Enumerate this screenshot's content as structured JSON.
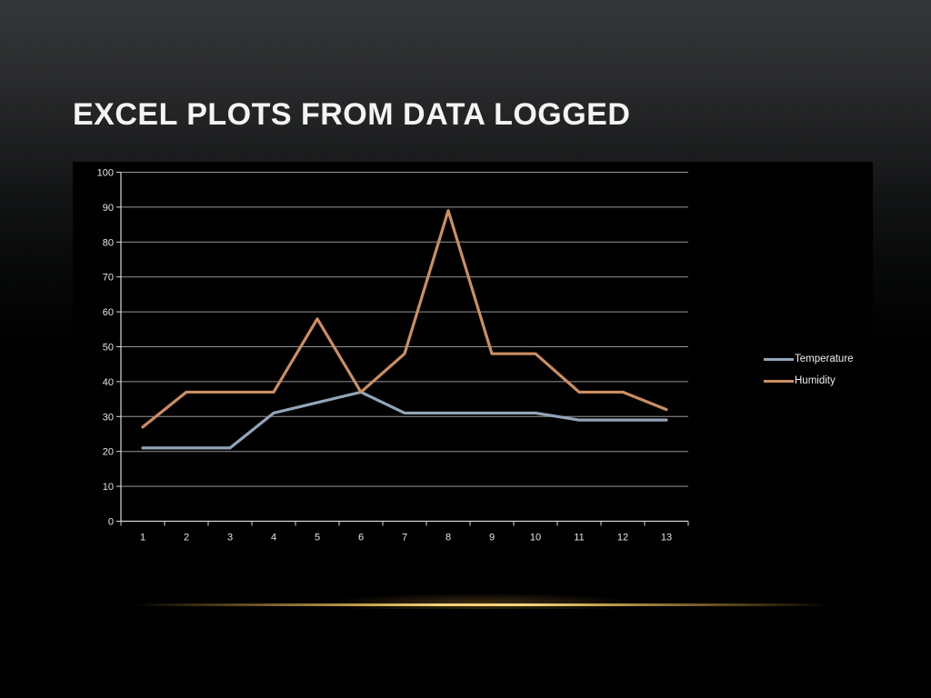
{
  "slide": {
    "title": "EXCEL PLOTS FROM DATA LOGGED"
  },
  "chart_data": {
    "type": "line",
    "title": "",
    "xlabel": "",
    "ylabel": "",
    "categories": [
      "1",
      "2",
      "3",
      "4",
      "5",
      "6",
      "7",
      "8",
      "9",
      "10",
      "11",
      "12",
      "13"
    ],
    "series": [
      {
        "name": "Temperature",
        "color": "#93a5b8",
        "values": [
          21,
          21,
          21,
          31,
          34,
          37,
          31,
          31,
          31,
          31,
          29,
          29,
          29
        ]
      },
      {
        "name": "Humidity",
        "color": "#cb8e63",
        "values": [
          27,
          37,
          37,
          37,
          58,
          37,
          48,
          89,
          48,
          48,
          37,
          37,
          32
        ]
      }
    ],
    "ylim": [
      0,
      100
    ],
    "ytick_step": 10,
    "grid": "horizontal",
    "legend_position": "right",
    "axis_color": "#d8d8d8",
    "gridline_color": "#b0b0b0",
    "label_color": "#e6e6e6",
    "plot_background": "#000000"
  },
  "divider": {
    "glow_color": "#f3ce77"
  }
}
